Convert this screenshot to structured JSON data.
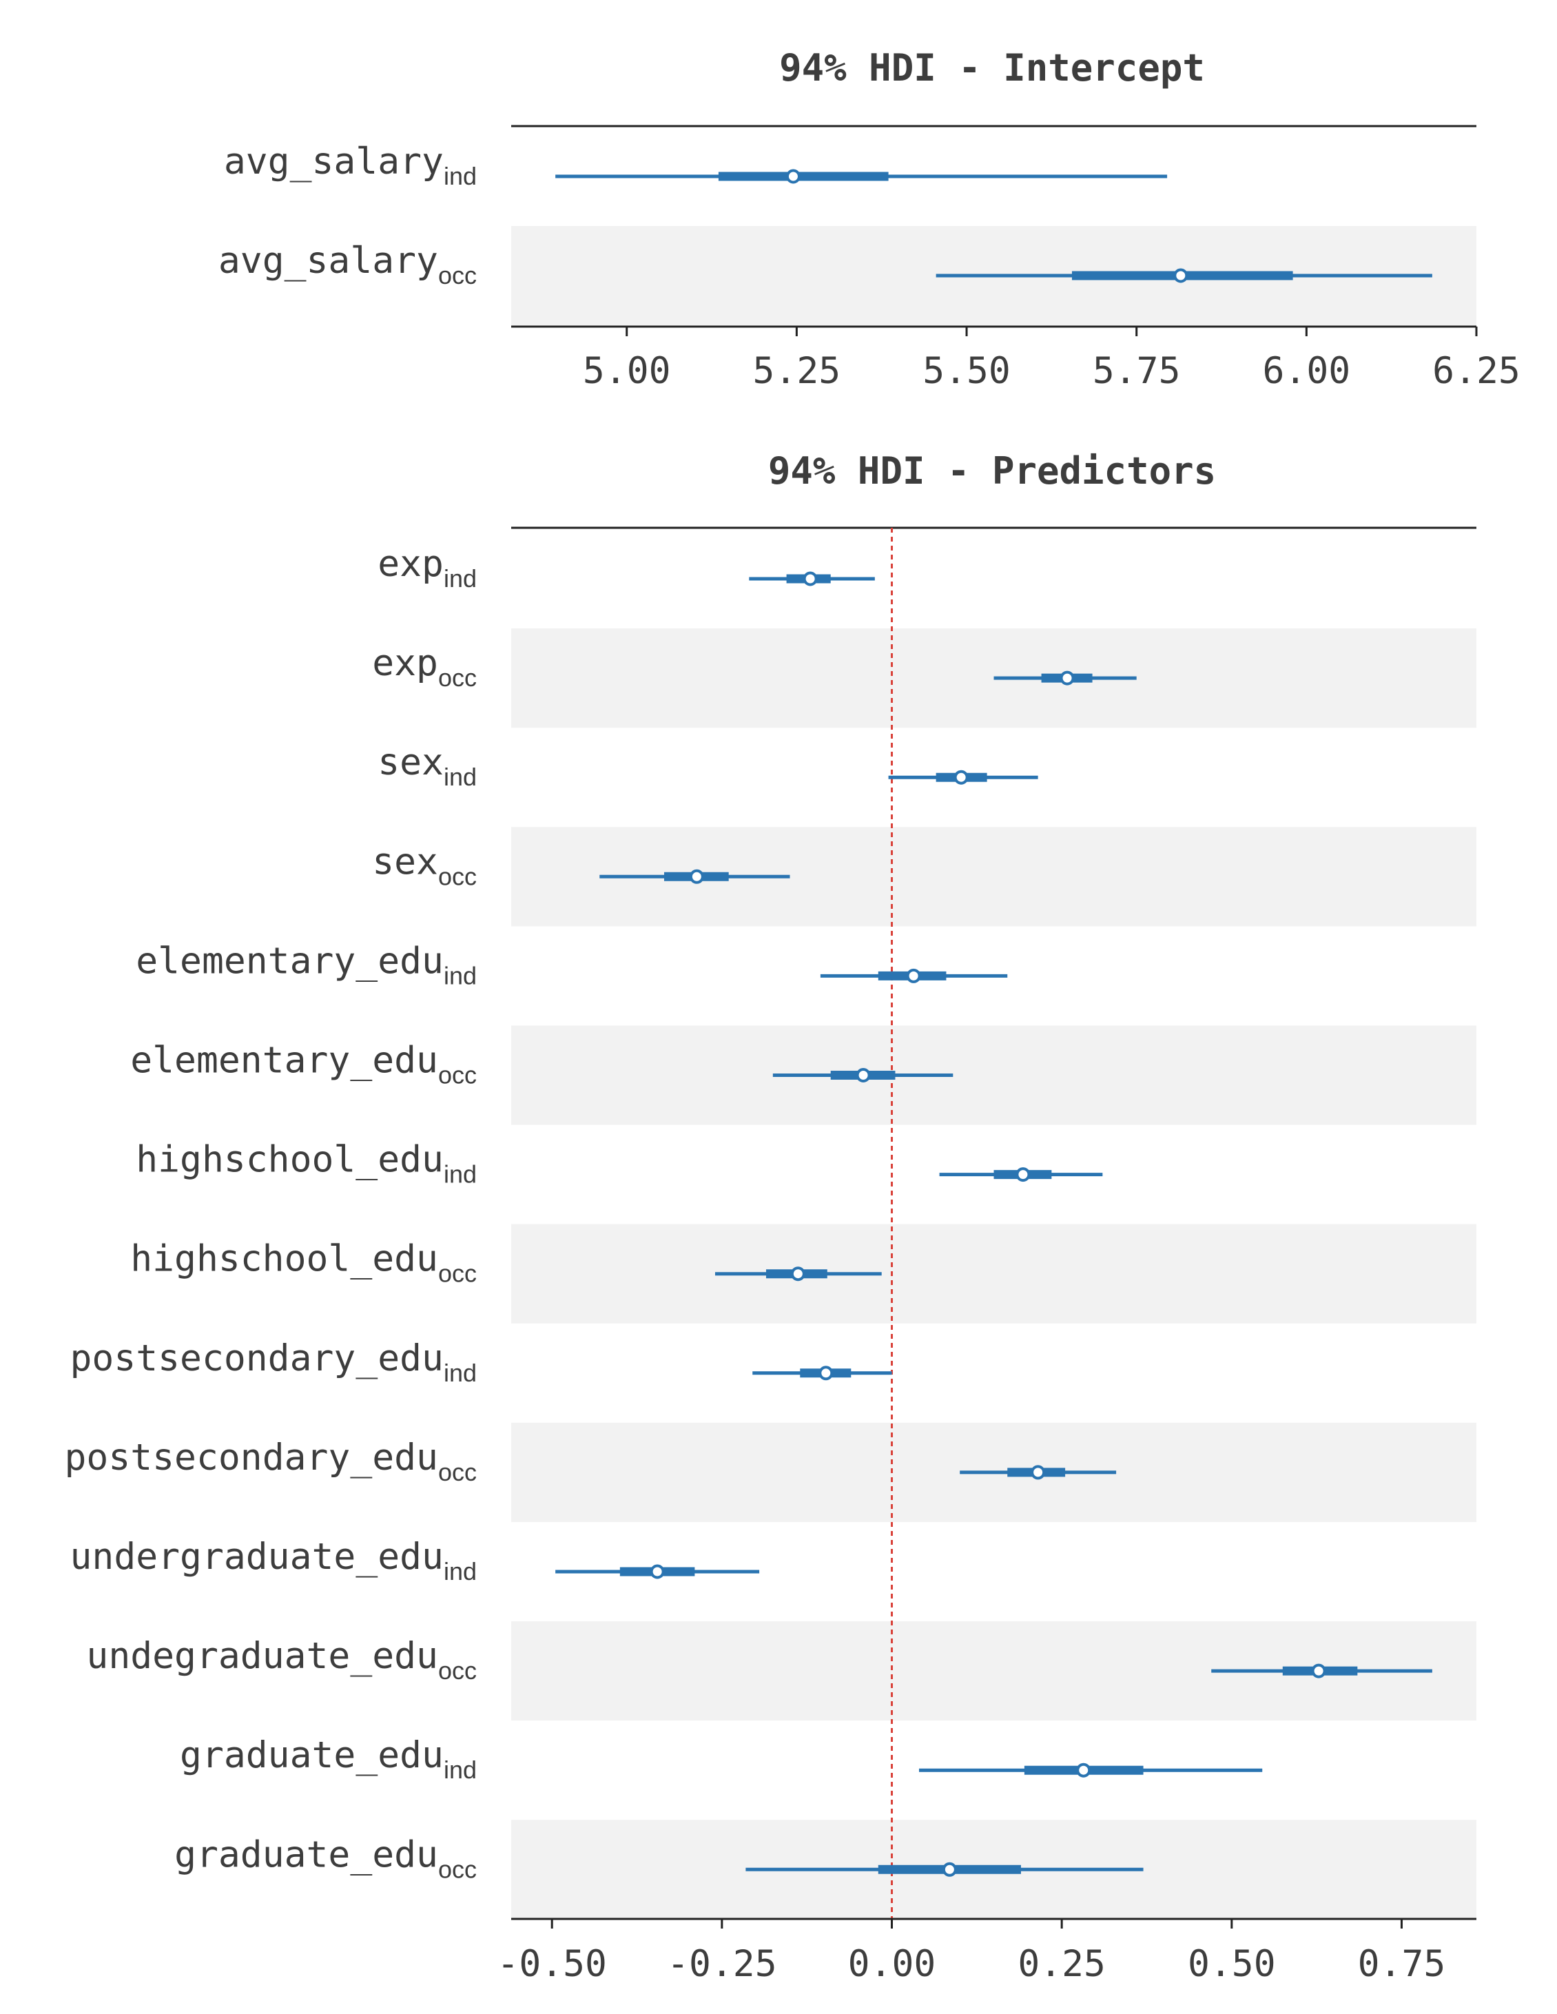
{
  "chart_data": [
    {
      "type": "forest",
      "title": "94% HDI - Intercept",
      "xlim": [
        4.83,
        6.25
      ],
      "xticks": [
        5.0,
        5.25,
        5.5,
        5.75,
        6.0,
        6.25
      ],
      "xtick_labels": [
        "5.00",
        "5.25",
        "5.50",
        "5.75",
        "6.00",
        "6.25"
      ],
      "reference_line": null,
      "rows": [
        {
          "base": "avg_salary",
          "sub": "ind",
          "hdi_94": [
            4.895,
            5.795
          ],
          "iqr": [
            5.135,
            5.385
          ],
          "mean": 5.245
        },
        {
          "base": "avg_salary",
          "sub": "occ",
          "hdi_94": [
            5.455,
            6.185
          ],
          "iqr": [
            5.655,
            5.98
          ],
          "mean": 5.815
        }
      ]
    },
    {
      "type": "forest",
      "title": "94% HDI - Predictors",
      "xlim": [
        -0.56,
        0.86
      ],
      "xticks": [
        -0.5,
        -0.25,
        0.0,
        0.25,
        0.5,
        0.75
      ],
      "xtick_labels": [
        "-0.50",
        "-0.25",
        "0.00",
        "0.25",
        "0.50",
        "0.75"
      ],
      "reference_line": 0.0,
      "rows": [
        {
          "base": "exp",
          "sub": "ind",
          "hdi_94": [
            -0.21,
            -0.025
          ],
          "iqr": [
            -0.155,
            -0.09
          ],
          "mean": -0.12
        },
        {
          "base": "exp",
          "sub": "occ",
          "hdi_94": [
            0.15,
            0.36
          ],
          "iqr": [
            0.22,
            0.295
          ],
          "mean": 0.258
        },
        {
          "base": "sex",
          "sub": "ind",
          "hdi_94": [
            -0.005,
            0.215
          ],
          "iqr": [
            0.065,
            0.14
          ],
          "mean": 0.102
        },
        {
          "base": "sex",
          "sub": "occ",
          "hdi_94": [
            -0.43,
            -0.15
          ],
          "iqr": [
            -0.335,
            -0.24
          ],
          "mean": -0.287
        },
        {
          "base": "elementary_edu",
          "sub": "ind",
          "hdi_94": [
            -0.105,
            0.17
          ],
          "iqr": [
            -0.02,
            0.08
          ],
          "mean": 0.032
        },
        {
          "base": "elementary_edu",
          "sub": "occ",
          "hdi_94": [
            -0.175,
            0.09
          ],
          "iqr": [
            -0.09,
            0.005
          ],
          "mean": -0.042
        },
        {
          "base": "highschool_edu",
          "sub": "ind",
          "hdi_94": [
            0.07,
            0.31
          ],
          "iqr": [
            0.15,
            0.235
          ],
          "mean": 0.193
        },
        {
          "base": "highschool_edu",
          "sub": "occ",
          "hdi_94": [
            -0.26,
            -0.015
          ],
          "iqr": [
            -0.185,
            -0.095
          ],
          "mean": -0.138
        },
        {
          "base": "postsecondary_edu",
          "sub": "ind",
          "hdi_94": [
            -0.205,
            0.0
          ],
          "iqr": [
            -0.135,
            -0.06
          ],
          "mean": -0.097
        },
        {
          "base": "postsecondary_edu",
          "sub": "occ",
          "hdi_94": [
            0.1,
            0.33
          ],
          "iqr": [
            0.17,
            0.255
          ],
          "mean": 0.215
        },
        {
          "base": "undergraduate_edu",
          "sub": "ind",
          "hdi_94": [
            -0.495,
            -0.195
          ],
          "iqr": [
            -0.4,
            -0.29
          ],
          "mean": -0.345
        },
        {
          "base": "undegraduate_edu",
          "sub": "occ",
          "hdi_94": [
            0.47,
            0.795
          ],
          "iqr": [
            0.575,
            0.685
          ],
          "mean": 0.628
        },
        {
          "base": "graduate_edu",
          "sub": "ind",
          "hdi_94": [
            0.04,
            0.545
          ],
          "iqr": [
            0.195,
            0.37
          ],
          "mean": 0.282
        },
        {
          "base": "graduate_edu",
          "sub": "occ",
          "hdi_94": [
            -0.215,
            0.37
          ],
          "iqr": [
            -0.02,
            0.19
          ],
          "mean": 0.085
        }
      ]
    }
  ],
  "colors": {
    "series": "#2a74b1",
    "band": "#f2f2f2",
    "reference_line": "#d9423a",
    "text": "#3d3d3d",
    "axis": "#222222"
  }
}
